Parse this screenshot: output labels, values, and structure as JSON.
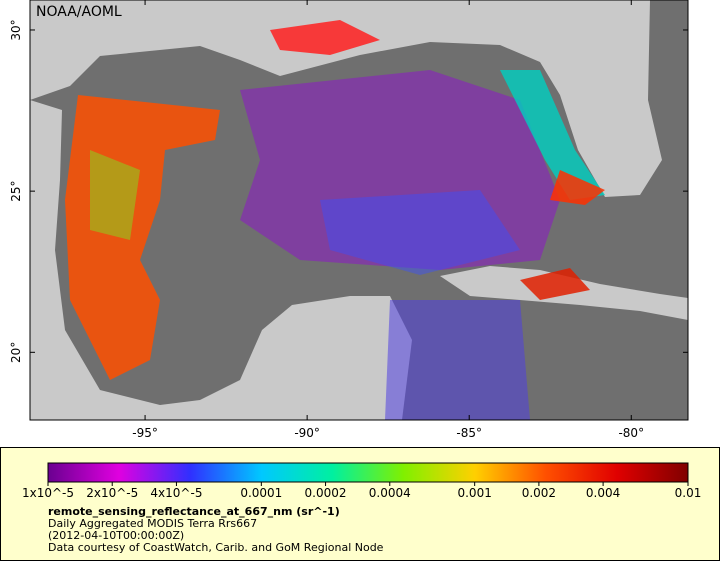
{
  "map": {
    "title": "NOAA/AOML",
    "lon_range": [
      -98.55,
      -78.25
    ],
    "lat_range": [
      17.9,
      30.93
    ],
    "lon_ticks": [
      {
        "value": -95,
        "label": "-95°"
      },
      {
        "value": -90,
        "label": "-90°"
      },
      {
        "value": -85,
        "label": "-85°"
      },
      {
        "value": -80,
        "label": "-80°"
      }
    ],
    "lat_ticks": [
      {
        "value": 20,
        "label": "20°"
      },
      {
        "value": 25,
        "label": "25°"
      },
      {
        "value": 30,
        "label": "30°"
      }
    ]
  },
  "colorbar": {
    "scale": "log",
    "range": [
      1e-05,
      0.01
    ],
    "colors": [
      "#6a0090",
      "#e000e0",
      "#3030ff",
      "#00c8ff",
      "#00f0a0",
      "#80f000",
      "#ffd000",
      "#ff5000",
      "#e00000",
      "#800000"
    ],
    "ticks": [
      {
        "value": 1e-05,
        "label": "1x10^-5"
      },
      {
        "value": 2e-05,
        "label": "2x10^-5"
      },
      {
        "value": 4e-05,
        "label": "4x10^-5"
      },
      0.0001,
      0.0002,
      0.0004,
      0.001,
      0.002,
      0.004,
      0.01
    ]
  },
  "legend": {
    "variable": "remote_sensing_reflectance_at_667_nm (sr^-1)",
    "description": "Daily Aggregated MODIS Terra Rrs667",
    "date": "(2012-04-10T00:00:00Z)",
    "credit": "Data courtesy of CoastWatch, Carib. and GoM Regional Node"
  }
}
